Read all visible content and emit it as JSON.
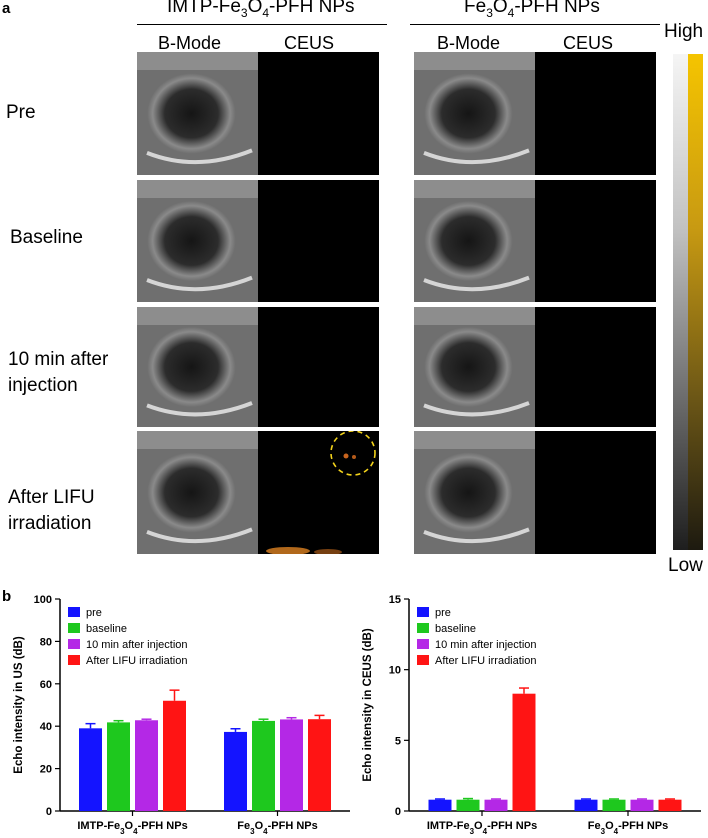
{
  "panel_a": {
    "letter": "a",
    "groups": [
      {
        "title_parts": [
          "IMTP-Fe",
          "3",
          "O",
          "4",
          "-PFH NPs"
        ]
      },
      {
        "title_parts": [
          "Fe",
          "3",
          "O",
          "4",
          "-PFH NPs"
        ]
      }
    ],
    "mode_labels": [
      "B-Mode",
      "CEUS"
    ],
    "row_labels": [
      "Pre",
      "Baseline",
      "10 min after injection",
      "After LIFU irradiation"
    ],
    "row_label_lines": [
      [
        "Pre"
      ],
      [
        "Baseline"
      ],
      [
        "10 min after",
        "injection"
      ],
      [
        "After LIFU",
        "irradiation"
      ]
    ],
    "scale": {
      "high": "High",
      "low": "Low"
    }
  },
  "panel_b": {
    "letter": "b"
  },
  "chart_data": [
    {
      "type": "bar",
      "ylabel": "Echo intensity in US (dB)",
      "ylim": [
        0,
        100
      ],
      "yticks": [
        0,
        20,
        40,
        60,
        80,
        100
      ],
      "categories": [
        {
          "parts": [
            "IMTP-Fe",
            "3",
            "O",
            "4",
            "-PFH NPs"
          ]
        },
        {
          "parts": [
            "Fe",
            "3",
            "O",
            "4",
            "-PFH NPs"
          ]
        }
      ],
      "legend_position": "top-left",
      "series": [
        {
          "name": "pre",
          "color": "#1414ff",
          "values": [
            39.0,
            37.3
          ],
          "errors": [
            2.2,
            1.5
          ]
        },
        {
          "name": "baseline",
          "color": "#1ec81e",
          "values": [
            41.8,
            42.5
          ],
          "errors": [
            0.8,
            0.8
          ]
        },
        {
          "name": "10 min after injection",
          "color": "#b428e6",
          "values": [
            42.8,
            43.2
          ],
          "errors": [
            0.5,
            0.8
          ]
        },
        {
          "name": "After LIFU irradiation",
          "color": "#ff1414",
          "values": [
            52.0,
            43.3
          ],
          "errors": [
            5.0,
            1.8
          ]
        }
      ]
    },
    {
      "type": "bar",
      "ylabel": "Echo intensity in CEUS (dB)",
      "ylim": [
        0,
        15
      ],
      "yticks": [
        0,
        5,
        10,
        15
      ],
      "categories": [
        {
          "parts": [
            "IMTP-Fe",
            "3",
            "O",
            "4",
            "-PFH NPs"
          ]
        },
        {
          "parts": [
            "Fe",
            "3",
            "O",
            "4",
            "-PFH NPs"
          ]
        }
      ],
      "legend_position": "top-left",
      "series": [
        {
          "name": "pre",
          "color": "#1414ff",
          "values": [
            0.8,
            0.8
          ],
          "errors": [
            0.05,
            0.05
          ]
        },
        {
          "name": "baseline",
          "color": "#1ec81e",
          "values": [
            0.8,
            0.8
          ],
          "errors": [
            0.08,
            0.05
          ]
        },
        {
          "name": "10 min after injection",
          "color": "#b428e6",
          "values": [
            0.8,
            0.8
          ],
          "errors": [
            0.05,
            0.05
          ]
        },
        {
          "name": "After LIFU irradiation",
          "color": "#ff1414",
          "values": [
            8.3,
            0.8
          ],
          "errors": [
            0.4,
            0.05
          ]
        }
      ]
    }
  ]
}
